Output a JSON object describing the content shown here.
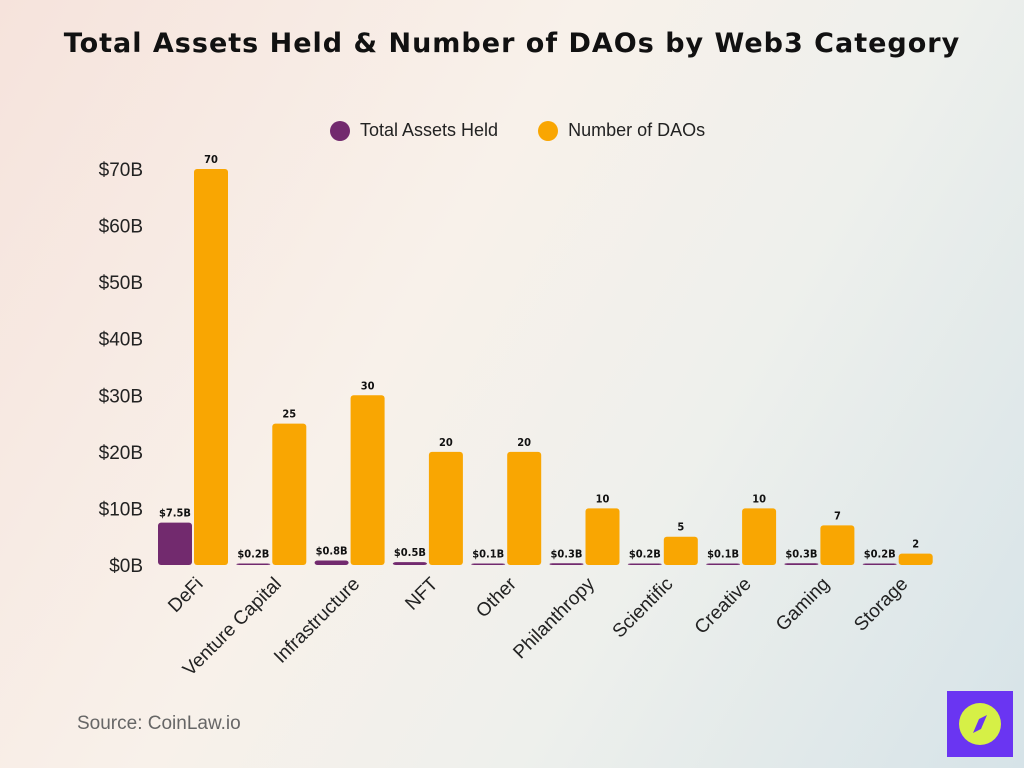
{
  "chart_data": {
    "type": "bar",
    "title": "Total Assets Held & Number of DAOs by Web3 Category",
    "categories": [
      "DeFi",
      "Venture Capital",
      "Infrastructure",
      "NFT",
      "Other",
      "Philanthropy",
      "Scientific",
      "Creative",
      "Gaming",
      "Storage"
    ],
    "series": [
      {
        "name": "Total Assets Held",
        "color": "#722a6e",
        "values": [
          7.5,
          0.2,
          0.8,
          0.5,
          0.1,
          0.3,
          0.2,
          0.1,
          0.3,
          0.2
        ],
        "labels": [
          "$7.5B",
          "$0.2B",
          "$0.8B",
          "$0.5B",
          "$0.1B",
          "$0.3B",
          "$0.2B",
          "$0.1B",
          "$0.3B",
          "$0.2B"
        ]
      },
      {
        "name": "Number of DAOs",
        "color": "#f9a602",
        "values": [
          70,
          25,
          30,
          20,
          20,
          10,
          5,
          10,
          7,
          2
        ],
        "labels": [
          "70",
          "25",
          "30",
          "20",
          "20",
          "10",
          "5",
          "10",
          "7",
          "2"
        ]
      }
    ],
    "yticks": [
      "$0B",
      "$10B",
      "$20B",
      "$30B",
      "$40B",
      "$50B",
      "$60B",
      "$70B"
    ],
    "ylim": [
      0,
      70
    ],
    "grid": false,
    "legend": "top"
  },
  "source": "Source: CoinLaw.io",
  "logo_icon": "compass-icon"
}
